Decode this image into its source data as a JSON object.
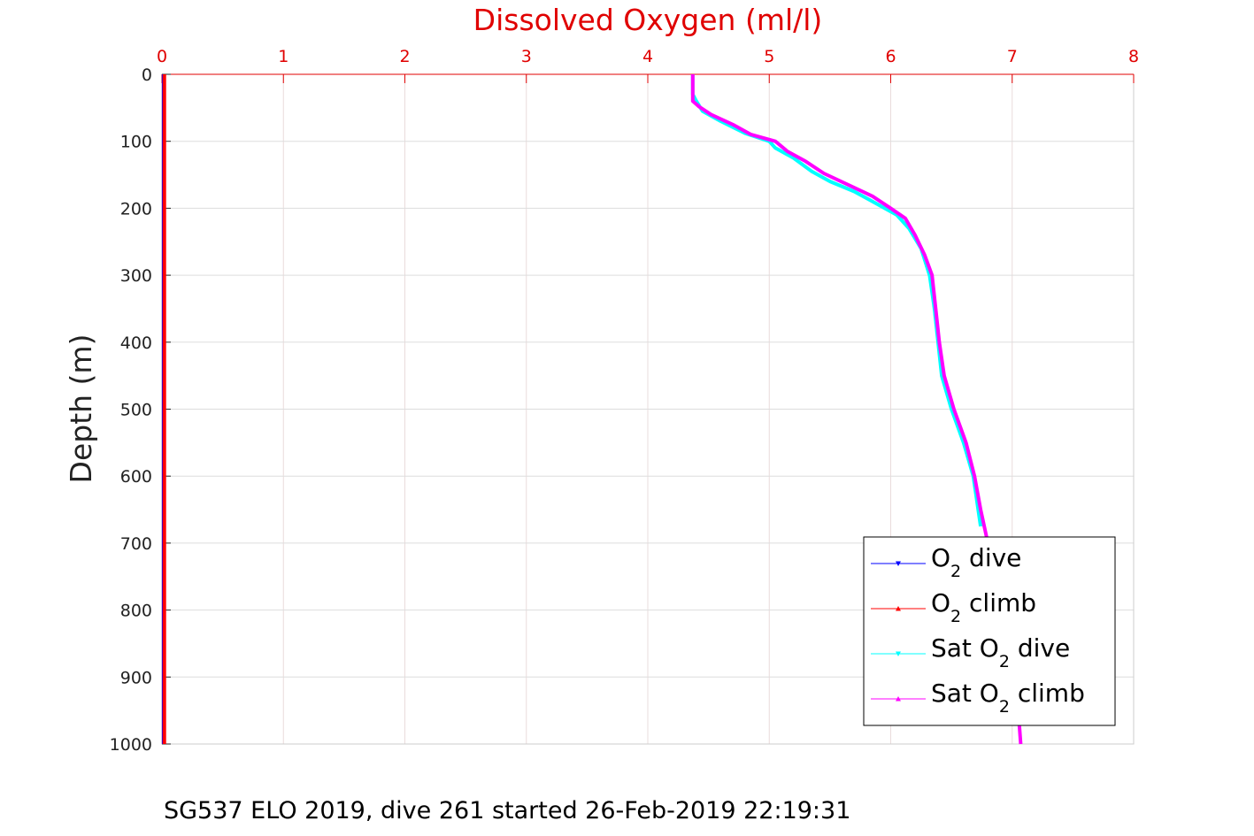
{
  "chart_data": {
    "type": "line",
    "title": "Dissolved Oxygen (ml/l)",
    "xlabel": "",
    "ylabel": "Depth (m)",
    "xlim": [
      0,
      8
    ],
    "ylim": [
      0,
      1000
    ],
    "y_reversed": true,
    "x_axis_position": "top",
    "x_ticks": [
      "0",
      "1",
      "2",
      "3",
      "4",
      "5",
      "6",
      "7",
      "8"
    ],
    "y_ticks": [
      "0",
      "100",
      "200",
      "300",
      "400",
      "500",
      "600",
      "700",
      "800",
      "900",
      "1000"
    ],
    "grid": true,
    "legend_position": "bottom-right",
    "colors": {
      "o2_dive": "#0000ff",
      "o2_climb": "#ff0000",
      "sat_dive": "#00ffff",
      "sat_climb": "#ff00ff",
      "axis_red": "#e00000"
    },
    "legend": [
      {
        "pre": "O",
        "sub": "2",
        "post": " dive",
        "color": "#0000ff",
        "marker": "triangle-down"
      },
      {
        "pre": "O",
        "sub": "2",
        "post": " climb",
        "color": "#ff0000",
        "marker": "triangle-up"
      },
      {
        "pre": "Sat O",
        "sub": "2",
        "post": " dive",
        "color": "#00ffff",
        "marker": "triangle-down"
      },
      {
        "pre": "Sat O",
        "sub": "2",
        "post": " climb",
        "color": "#ff00ff",
        "marker": "triangle-up"
      }
    ],
    "series": [
      {
        "key": "o2_dive",
        "values": [
          [
            0.01,
            0
          ],
          [
            0.01,
            500
          ],
          [
            0.01,
            1000
          ]
        ]
      },
      {
        "key": "o2_climb",
        "values": [
          [
            0.02,
            0
          ],
          [
            0.02,
            500
          ],
          [
            0.02,
            1000
          ]
        ]
      },
      {
        "key": "sat_dive",
        "values": [
          [
            4.37,
            0
          ],
          [
            4.37,
            30
          ],
          [
            4.4,
            40
          ],
          [
            4.45,
            55
          ],
          [
            4.6,
            70
          ],
          [
            4.8,
            88
          ],
          [
            5.0,
            100
          ],
          [
            5.05,
            110
          ],
          [
            5.2,
            125
          ],
          [
            5.35,
            145
          ],
          [
            5.5,
            160
          ],
          [
            5.7,
            175
          ],
          [
            5.85,
            190
          ],
          [
            6.05,
            210
          ],
          [
            6.15,
            230
          ],
          [
            6.25,
            260
          ],
          [
            6.32,
            300
          ],
          [
            6.36,
            350
          ],
          [
            6.39,
            400
          ],
          [
            6.42,
            450
          ],
          [
            6.5,
            500
          ],
          [
            6.6,
            550
          ],
          [
            6.68,
            600
          ],
          [
            6.72,
            650
          ],
          [
            6.74,
            675
          ]
        ]
      },
      {
        "key": "sat_climb",
        "values": [
          [
            4.37,
            0
          ],
          [
            4.37,
            40
          ],
          [
            4.42,
            48
          ],
          [
            4.52,
            60
          ],
          [
            4.7,
            75
          ],
          [
            4.85,
            90
          ],
          [
            5.05,
            100
          ],
          [
            5.15,
            115
          ],
          [
            5.3,
            130
          ],
          [
            5.45,
            148
          ],
          [
            5.65,
            165
          ],
          [
            5.85,
            182
          ],
          [
            6.0,
            200
          ],
          [
            6.12,
            215
          ],
          [
            6.2,
            240
          ],
          [
            6.28,
            270
          ],
          [
            6.34,
            300
          ],
          [
            6.37,
            350
          ],
          [
            6.4,
            400
          ],
          [
            6.44,
            450
          ],
          [
            6.52,
            500
          ],
          [
            6.62,
            550
          ],
          [
            6.69,
            600
          ],
          [
            6.74,
            650
          ],
          [
            6.8,
            700
          ],
          [
            6.88,
            750
          ],
          [
            6.95,
            800
          ],
          [
            7.0,
            850
          ],
          [
            7.03,
            900
          ],
          [
            7.05,
            950
          ],
          [
            7.07,
            1000
          ]
        ]
      }
    ]
  },
  "caption": "SG537 ELO 2019, dive 261 started 26-Feb-2019 22:19:31"
}
